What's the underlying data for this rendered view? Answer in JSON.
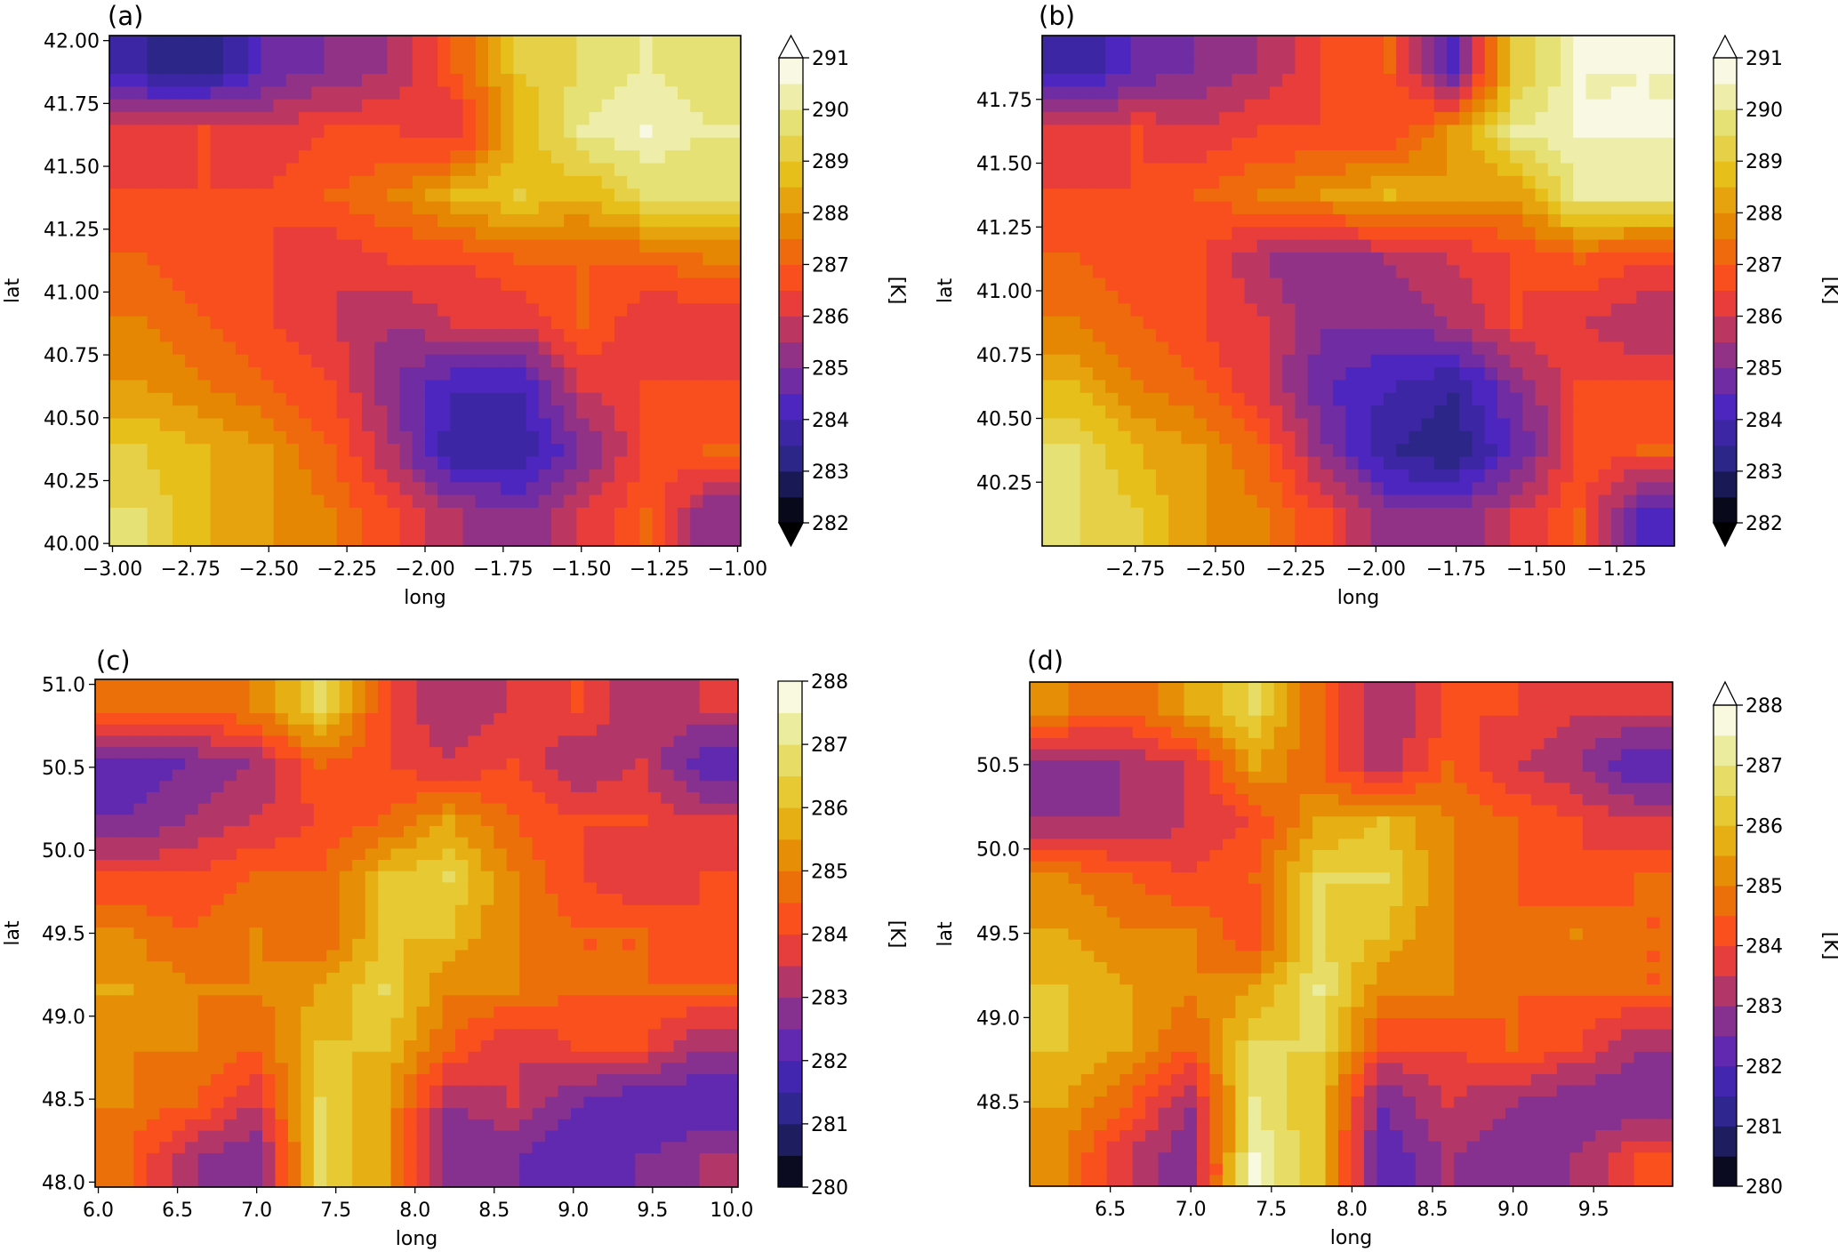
{
  "chart_data": [
    {
      "panel_label": "(a)",
      "type": "heatmap",
      "xlabel": "long",
      "ylabel": "lat",
      "xlim": [
        -3.01,
        -0.99
      ],
      "ylim": [
        39.99,
        42.02
      ],
      "xticks": [
        -3.0,
        -2.75,
        -2.5,
        -2.25,
        -2.0,
        -1.75,
        -1.5,
        -1.25,
        -1.0
      ],
      "xtick_labels": [
        "−3.00",
        "−2.75",
        "−2.50",
        "−2.25",
        "−2.00",
        "−1.75",
        "−1.50",
        "−1.25",
        "−1.00"
      ],
      "yticks": [
        40.0,
        40.25,
        40.5,
        40.75,
        41.0,
        41.25,
        41.5,
        41.75,
        42.0
      ],
      "ytick_labels": [
        "40.00",
        "40.25",
        "40.50",
        "40.75",
        "41.00",
        "41.25",
        "41.50",
        "41.75",
        "42.00"
      ],
      "colormap": "CMRmap",
      "colorbar": {
        "label": "[K]",
        "range": [
          282,
          291
        ],
        "ticks": [
          "282",
          "283",
          "284",
          "285",
          "286",
          "287",
          "288",
          "289",
          "290",
          "291"
        ],
        "extend": "both"
      },
      "values_rows_north_to_south": [
        [
          283.5,
          283,
          284.5,
          285,
          285.5,
          287,
          289,
          289.5,
          290,
          289.5
        ],
        [
          286,
          286.5,
          286,
          286.5,
          286.5,
          286,
          288.5,
          290,
          290.5,
          290
        ],
        [
          286.5,
          286.5,
          286.5,
          287,
          287.5,
          288.5,
          289,
          288.5,
          289.5,
          289.5
        ],
        [
          287,
          286.5,
          286.5,
          286,
          286.5,
          286.5,
          287,
          287,
          287,
          287.5
        ],
        [
          287.5,
          287,
          286.5,
          286,
          285.5,
          286,
          286,
          287,
          286,
          286
        ],
        [
          288,
          287.5,
          287,
          286.5,
          285,
          284,
          284,
          286,
          286.5,
          286.5
        ],
        [
          289,
          288.5,
          288,
          287,
          285.5,
          283.5,
          283.5,
          285,
          286.5,
          287
        ],
        [
          289.5,
          288.5,
          288,
          287.5,
          286.5,
          285.5,
          285,
          286,
          287,
          285
        ]
      ]
    },
    {
      "panel_label": "(b)",
      "type": "heatmap",
      "xlabel": "long",
      "ylabel": "lat",
      "xlim": [
        -3.04,
        -1.07
      ],
      "ylim": [
        40.0,
        42.0
      ],
      "xticks": [
        -2.75,
        -2.5,
        -2.25,
        -2.0,
        -1.75,
        -1.5,
        -1.25
      ],
      "xtick_labels": [
        "−2.75",
        "−2.50",
        "−2.25",
        "−2.00",
        "−1.75",
        "−1.50",
        "−1.25"
      ],
      "yticks": [
        40.25,
        40.5,
        40.75,
        41.0,
        41.25,
        41.5,
        41.75
      ],
      "ytick_labels": [
        "40.25",
        "40.50",
        "40.75",
        "41.00",
        "41.25",
        "41.50",
        "41.75"
      ],
      "colormap": "CMRmap",
      "colorbar": {
        "label": "[K]",
        "range": [
          282,
          291
        ],
        "ticks": [
          "282",
          "283",
          "284",
          "285",
          "286",
          "287",
          "288",
          "289",
          "290",
          "291"
        ],
        "extend": "both"
      },
      "values_rows_north_to_south": [
        [
          283.5,
          284.5,
          285,
          285.5,
          286.5,
          287,
          284,
          289,
          290.5,
          290.5
        ],
        [
          286,
          286.5,
          286,
          286.5,
          286.5,
          286.5,
          288,
          290,
          290.5,
          290.5
        ],
        [
          286.5,
          286.5,
          287,
          287.5,
          288,
          288.5,
          288,
          288,
          290,
          290
        ],
        [
          287,
          286.5,
          286.5,
          285.5,
          285,
          285.5,
          286,
          286.5,
          287,
          286.5
        ],
        [
          287.5,
          287,
          286.5,
          286,
          285,
          285,
          285.5,
          286.5,
          286,
          285.5
        ],
        [
          288.5,
          287.5,
          287,
          286,
          284.5,
          284,
          283.5,
          285,
          286.5,
          286.5
        ],
        [
          289.5,
          288.5,
          288,
          287,
          285,
          283.5,
          283,
          284.5,
          286.5,
          287
        ],
        [
          289.5,
          289,
          288,
          287.5,
          286.5,
          285,
          285,
          286,
          287,
          284
        ]
      ]
    },
    {
      "panel_label": "(c)",
      "type": "heatmap",
      "xlabel": "long",
      "ylabel": "lat",
      "xlim": [
        5.98,
        10.04
      ],
      "ylim": [
        47.97,
        51.03
      ],
      "xticks": [
        6.0,
        6.5,
        7.0,
        7.5,
        8.0,
        8.5,
        9.0,
        9.5,
        10.0
      ],
      "xtick_labels": [
        "6.0",
        "6.5",
        "7.0",
        "7.5",
        "8.0",
        "8.5",
        "9.0",
        "9.5",
        "10.0"
      ],
      "yticks": [
        48.0,
        48.5,
        49.0,
        49.5,
        50.0,
        50.5,
        51.0
      ],
      "ytick_labels": [
        "48.0",
        "48.5",
        "49.0",
        "49.5",
        "50.0",
        "50.5",
        "51.0"
      ],
      "colormap": "CMRmap",
      "colorbar": {
        "label": "[K]",
        "range": [
          280,
          288
        ],
        "ticks": [
          "280",
          "281",
          "282",
          "283",
          "284",
          "285",
          "286",
          "287",
          "288"
        ],
        "extend": "neither"
      },
      "values_rows_north_to_south": [
        [
          284.5,
          284.5,
          285,
          286.5,
          284,
          283,
          283.5,
          284,
          283,
          283.5
        ],
        [
          282,
          282.5,
          283,
          284.5,
          284,
          283.5,
          284,
          283,
          283.5,
          282
        ],
        [
          282.5,
          283,
          283.5,
          284,
          284.5,
          285.5,
          284.5,
          284,
          284,
          283.5
        ],
        [
          284,
          284,
          284.5,
          284.5,
          286,
          286.5,
          285,
          284,
          283.5,
          284
        ],
        [
          285,
          284.5,
          285,
          284.5,
          286,
          286,
          285,
          284.5,
          284.5,
          284
        ],
        [
          285.5,
          285,
          285,
          285.5,
          286.5,
          285,
          285,
          284.5,
          284.5,
          284.5
        ],
        [
          285,
          285,
          284.5,
          286,
          286,
          284.5,
          283.5,
          284,
          284,
          283
        ],
        [
          285,
          284.5,
          283.5,
          286.5,
          285.5,
          283,
          283.5,
          282.5,
          282,
          282
        ],
        [
          284.5,
          283,
          282.5,
          286.5,
          285.5,
          282.5,
          282.5,
          282,
          282.5,
          283
        ]
      ]
    },
    {
      "panel_label": "(d)",
      "type": "heatmap",
      "xlabel": "long",
      "ylabel": "lat",
      "xlim": [
        6.0,
        9.99
      ],
      "ylim": [
        48.0,
        50.99
      ],
      "xticks": [
        6.5,
        7.0,
        7.5,
        8.0,
        8.5,
        9.0,
        9.5
      ],
      "xtick_labels": [
        "6.5",
        "7.0",
        "7.5",
        "8.0",
        "8.5",
        "9.0",
        "9.5"
      ],
      "yticks": [
        48.5,
        49.0,
        49.5,
        50.0,
        50.5
      ],
      "ytick_labels": [
        "48.5",
        "49.0",
        "49.5",
        "50.0",
        "50.5"
      ],
      "colormap": "CMRmap",
      "colorbar": {
        "label": "[K]",
        "range": [
          280,
          288
        ],
        "ticks": [
          "280",
          "281",
          "282",
          "283",
          "284",
          "285",
          "286",
          "287",
          "288"
        ],
        "extend": "max"
      },
      "values_rows_north_to_south": [
        [
          285,
          284.5,
          285.5,
          286.5,
          284.5,
          283,
          284,
          284,
          283.5,
          283.5
        ],
        [
          282.5,
          283,
          283.5,
          285.5,
          284.5,
          283,
          284.5,
          283.5,
          283,
          282
        ],
        [
          283,
          283,
          283.5,
          284,
          285.5,
          286,
          285,
          284.5,
          284,
          283.5
        ],
        [
          285,
          284.5,
          284,
          284.5,
          286.5,
          286.5,
          285,
          284.5,
          284,
          284.5
        ],
        [
          285.5,
          285,
          285,
          284,
          286.5,
          286,
          285,
          284.5,
          285,
          284.5
        ],
        [
          286,
          285.5,
          285,
          285.5,
          287,
          285,
          285,
          284.5,
          284.5,
          284.5
        ],
        [
          286,
          285.5,
          284.5,
          286.5,
          286.5,
          284,
          284,
          284.5,
          284,
          283
        ],
        [
          285.5,
          284.5,
          283,
          287,
          286,
          282.5,
          283.5,
          283,
          282.5,
          282.5
        ],
        [
          285,
          283.5,
          282.5,
          287.5,
          286,
          282,
          283,
          282.5,
          283,
          284
        ]
      ]
    }
  ]
}
